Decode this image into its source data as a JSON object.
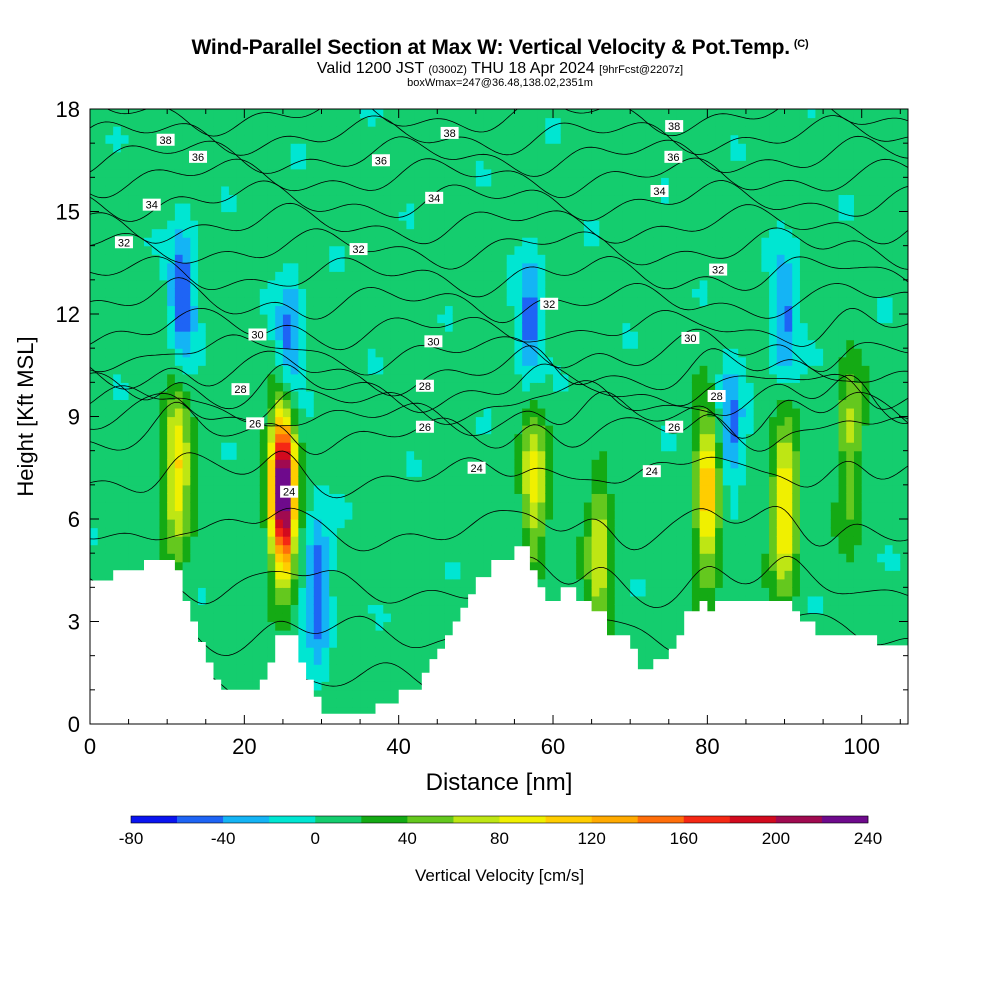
{
  "header": {
    "title": "Wind-Parallel Section at Max W: Vertical Velocity & Pot.Temp.",
    "copyright": "(C)",
    "valid_main": "Valid 1200 JST",
    "valid_utc": "(0300Z)",
    "valid_date": "THU 18 Apr 2024",
    "forecast": "[9hrFcst@2207z]",
    "boxinfo": "boxWmax=247@36.48,138.02,2351m"
  },
  "chart_data": {
    "type": "heatmap",
    "title": "Wind-Parallel Section at Max W: Vertical Velocity & Pot.Temp.",
    "xlabel": "Distance [nm]",
    "ylabel": "Height [Kft MSL]",
    "xlim": [
      0,
      106
    ],
    "ylim": [
      0,
      18
    ],
    "x_ticks": [
      0,
      20,
      40,
      60,
      80,
      100
    ],
    "y_ticks": [
      0,
      3,
      6,
      9,
      12,
      15,
      18
    ],
    "colorbar": {
      "label": "Vertical Velocity [cm/s]",
      "tick_labels": [
        -80,
        -40,
        0,
        40,
        80,
        120,
        160,
        200,
        240
      ],
      "levels": [
        -80,
        -60,
        -40,
        -20,
        0,
        20,
        40,
        60,
        80,
        100,
        120,
        140,
        160,
        180,
        200,
        220,
        240
      ],
      "colors": [
        "#0a14f0",
        "#1e64f5",
        "#14b4f5",
        "#00e6d2",
        "#14cd6e",
        "#14aa14",
        "#64c81e",
        "#bee614",
        "#f0f000",
        "#ffcd00",
        "#ffaa00",
        "#ff6e0a",
        "#f52814",
        "#d20a1e",
        "#a00a50",
        "#6e0a8c"
      ]
    },
    "terrain_profile": [
      [
        0,
        4.2
      ],
      [
        3,
        4.2
      ],
      [
        3,
        4.5
      ],
      [
        7,
        4.5
      ],
      [
        7,
        4.8
      ],
      [
        11,
        4.8
      ],
      [
        11,
        4.5
      ],
      [
        12,
        4.5
      ],
      [
        12,
        3.6
      ],
      [
        13,
        3.6
      ],
      [
        13,
        3.0
      ],
      [
        14,
        3.0
      ],
      [
        14,
        2.4
      ],
      [
        15,
        2.4
      ],
      [
        15,
        1.8
      ],
      [
        16,
        1.8
      ],
      [
        16,
        1.3
      ],
      [
        17,
        1.3
      ],
      [
        17,
        1.0
      ],
      [
        22,
        1.0
      ],
      [
        22,
        1.3
      ],
      [
        23,
        1.3
      ],
      [
        23,
        1.8
      ],
      [
        24,
        1.8
      ],
      [
        24,
        2.6
      ],
      [
        27,
        2.6
      ],
      [
        27,
        1.8
      ],
      [
        28,
        1.8
      ],
      [
        28,
        1.3
      ],
      [
        29,
        1.3
      ],
      [
        29,
        0.8
      ],
      [
        30,
        0.8
      ],
      [
        30,
        0.3
      ],
      [
        37,
        0.3
      ],
      [
        37,
        0.6
      ],
      [
        40,
        0.6
      ],
      [
        40,
        1.0
      ],
      [
        43,
        1.0
      ],
      [
        43,
        1.5
      ],
      [
        44,
        1.5
      ],
      [
        44,
        1.9
      ],
      [
        45,
        1.9
      ],
      [
        45,
        2.2
      ],
      [
        46,
        2.2
      ],
      [
        46,
        2.6
      ],
      [
        47,
        2.6
      ],
      [
        47,
        3.0
      ],
      [
        48,
        3.0
      ],
      [
        48,
        3.4
      ],
      [
        49,
        3.4
      ],
      [
        49,
        3.8
      ],
      [
        50,
        3.8
      ],
      [
        50,
        4.3
      ],
      [
        52,
        4.3
      ],
      [
        52,
        4.8
      ],
      [
        55,
        4.8
      ],
      [
        55,
        5.2
      ],
      [
        57,
        5.2
      ],
      [
        57,
        4.5
      ],
      [
        58,
        4.5
      ],
      [
        58,
        4.0
      ],
      [
        59,
        4.0
      ],
      [
        59,
        3.6
      ],
      [
        61,
        3.6
      ],
      [
        61,
        4.0
      ],
      [
        63,
        4.0
      ],
      [
        63,
        3.6
      ],
      [
        65,
        3.6
      ],
      [
        65,
        3.3
      ],
      [
        67,
        3.3
      ],
      [
        67,
        2.6
      ],
      [
        70,
        2.6
      ],
      [
        70,
        2.2
      ],
      [
        71,
        2.2
      ],
      [
        71,
        1.6
      ],
      [
        73,
        1.6
      ],
      [
        73,
        1.9
      ],
      [
        75,
        1.9
      ],
      [
        75,
        2.2
      ],
      [
        76,
        2.2
      ],
      [
        76,
        2.6
      ],
      [
        77,
        2.6
      ],
      [
        77,
        3.3
      ],
      [
        79,
        3.3
      ],
      [
        79,
        3.6
      ],
      [
        80,
        3.6
      ],
      [
        80,
        3.3
      ],
      [
        81,
        3.3
      ],
      [
        81,
        3.6
      ],
      [
        91,
        3.6
      ],
      [
        91,
        3.3
      ],
      [
        92,
        3.3
      ],
      [
        92,
        3.0
      ],
      [
        94,
        3.0
      ],
      [
        94,
        2.6
      ],
      [
        102,
        2.6
      ],
      [
        102,
        2.3
      ],
      [
        106,
        2.3
      ]
    ],
    "theta_contour_labels": [
      {
        "value": "38",
        "x": 9.8,
        "y": 17.1
      },
      {
        "value": "36",
        "x": 14,
        "y": 16.6
      },
      {
        "value": "34",
        "x": 8,
        "y": 15.2
      },
      {
        "value": "32",
        "x": 4.4,
        "y": 14.1
      },
      {
        "value": "38",
        "x": 46.6,
        "y": 17.3
      },
      {
        "value": "36",
        "x": 37.7,
        "y": 16.5
      },
      {
        "value": "34",
        "x": 44.6,
        "y": 15.4
      },
      {
        "value": "32",
        "x": 34.8,
        "y": 13.9
      },
      {
        "value": "38",
        "x": 75.7,
        "y": 17.5
      },
      {
        "value": "36",
        "x": 75.6,
        "y": 16.6
      },
      {
        "value": "34",
        "x": 73.8,
        "y": 15.6
      },
      {
        "value": "32",
        "x": 81.4,
        "y": 13.3
      },
      {
        "value": "32",
        "x": 59.5,
        "y": 12.3
      },
      {
        "value": "30",
        "x": 21.7,
        "y": 11.4
      },
      {
        "value": "30",
        "x": 44.5,
        "y": 11.2
      },
      {
        "value": "30",
        "x": 77.8,
        "y": 11.3
      },
      {
        "value": "28",
        "x": 19.5,
        "y": 9.8
      },
      {
        "value": "28",
        "x": 43.4,
        "y": 9.9
      },
      {
        "value": "28",
        "x": 81.2,
        "y": 9.6
      },
      {
        "value": "26",
        "x": 21.4,
        "y": 8.8
      },
      {
        "value": "26",
        "x": 43.4,
        "y": 8.7
      },
      {
        "value": "26",
        "x": 75.7,
        "y": 8.7
      },
      {
        "value": "24",
        "x": 50.1,
        "y": 7.5
      },
      {
        "value": "24",
        "x": 72.8,
        "y": 7.4
      },
      {
        "value": "24",
        "x": 25.8,
        "y": 6.8
      }
    ],
    "updraft_cores": [
      {
        "x": 11.3,
        "y": 7.3,
        "wmax": 95
      },
      {
        "x": 25.0,
        "y": 6.8,
        "wmax": 247
      },
      {
        "x": 57.5,
        "y": 7.0,
        "wmax": 80
      },
      {
        "x": 66.0,
        "y": 5.0,
        "wmax": 70
      },
      {
        "x": 80.0,
        "y": 6.6,
        "wmax": 110
      },
      {
        "x": 90.0,
        "y": 6.3,
        "wmax": 105
      },
      {
        "x": 98.5,
        "y": 8.2,
        "wmax": 60
      }
    ],
    "downdraft_cores": [
      {
        "x": 12.0,
        "y": 12.6,
        "wmin": -70
      },
      {
        "x": 25.8,
        "y": 11.2,
        "wmin": -60
      },
      {
        "x": 29.5,
        "y": 4.0,
        "wmin": -75
      },
      {
        "x": 57.0,
        "y": 11.6,
        "wmin": -60
      },
      {
        "x": 83.0,
        "y": 8.5,
        "wmin": -55
      },
      {
        "x": 90.0,
        "y": 11.8,
        "wmin": -55
      }
    ]
  }
}
